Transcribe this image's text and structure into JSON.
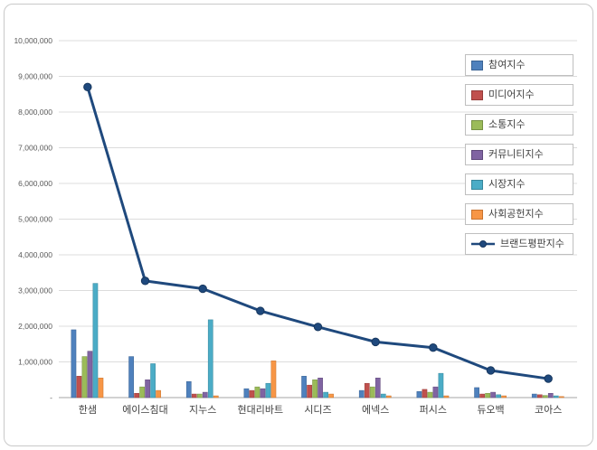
{
  "chart_data": {
    "type": "bar",
    "subtype": "grouped-bars-with-line-overlay",
    "title": "",
    "xlabel": "",
    "ylabel": "",
    "ylim": [
      0,
      10000000
    ],
    "ytick_step": 1000000,
    "ytick_labels": [
      "-",
      "1,000,000",
      "2,000,000",
      "3,000,000",
      "4,000,000",
      "5,000,000",
      "6,000,000",
      "7,000,000",
      "8,000,000",
      "9,000,000",
      "10,000,000"
    ],
    "grid": true,
    "legend_position": "right-top",
    "categories": [
      "한샘",
      "에이스침대",
      "지누스",
      "현대리바트",
      "시디즈",
      "에넥스",
      "퍼시스",
      "듀오백",
      "코아스"
    ],
    "bar_series": [
      {
        "name": "참여지수",
        "color": "#4F81BD",
        "edge": "#3A6394",
        "values": [
          1900000,
          1150000,
          450000,
          250000,
          600000,
          200000,
          170000,
          280000,
          100000
        ]
      },
      {
        "name": "미디어지수",
        "color": "#C0504D",
        "edge": "#953B39",
        "values": [
          600000,
          120000,
          100000,
          200000,
          350000,
          400000,
          230000,
          100000,
          80000
        ]
      },
      {
        "name": "소통지수",
        "color": "#9BBB59",
        "edge": "#769143",
        "values": [
          1150000,
          300000,
          100000,
          300000,
          500000,
          300000,
          150000,
          120000,
          60000
        ]
      },
      {
        "name": "커뮤니티지수",
        "color": "#8064A2",
        "edge": "#604A7B",
        "values": [
          1300000,
          500000,
          150000,
          250000,
          550000,
          550000,
          300000,
          150000,
          120000
        ]
      },
      {
        "name": "시장지수",
        "color": "#4BACC6",
        "edge": "#37869B",
        "values": [
          3200000,
          950000,
          2180000,
          400000,
          150000,
          100000,
          680000,
          80000,
          50000
        ]
      },
      {
        "name": "사회공헌지수",
        "color": "#F79646",
        "edge": "#C87430",
        "values": [
          550000,
          200000,
          50000,
          1030000,
          100000,
          50000,
          50000,
          50000,
          30000
        ]
      }
    ],
    "line_series": {
      "name": "브랜드평판지수",
      "color": "#1F497D",
      "marker_edge": "#17375E",
      "values": [
        8700000,
        3270000,
        3050000,
        2430000,
        1980000,
        1560000,
        1400000,
        760000,
        530000
      ]
    },
    "colors": {
      "gridline": "#dcdcdc",
      "axis": "#a6a6a6",
      "ytick_text": "#595959",
      "xtick_text": "#404040",
      "plot_bg": "#ffffff"
    }
  }
}
